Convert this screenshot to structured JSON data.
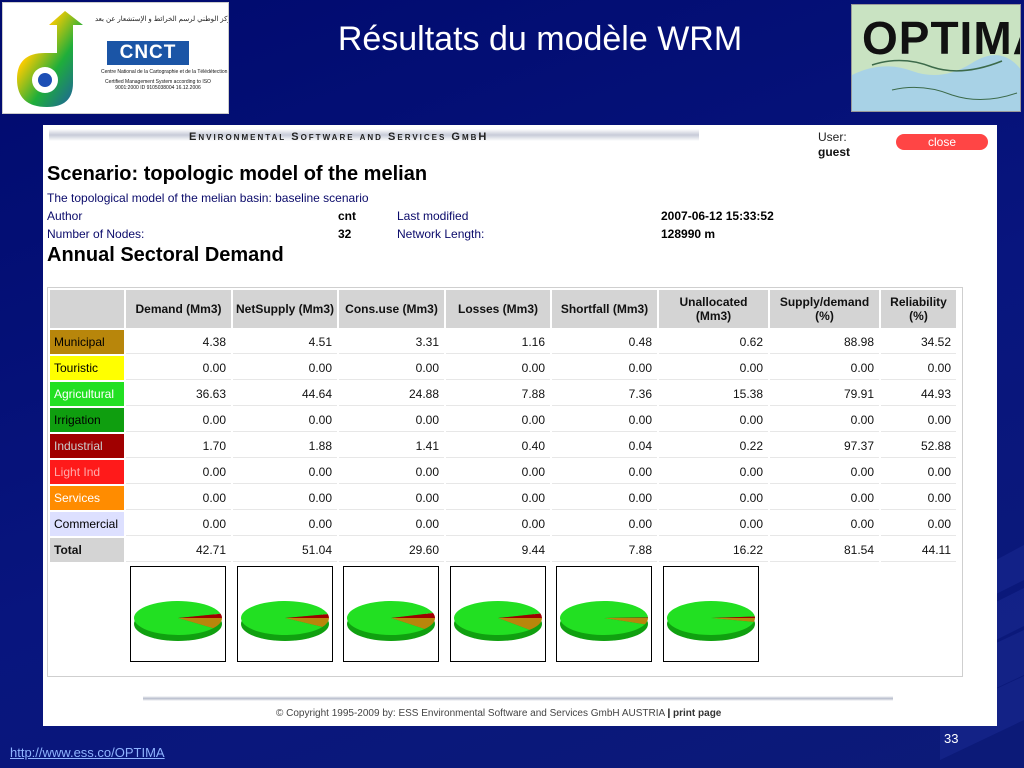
{
  "slide": {
    "title": "Résultats du modèle WRM",
    "page_number": "33",
    "url": "http://www.ess.co/OPTIMA"
  },
  "logos": {
    "cnct_word": "CNCT",
    "cnct_arabic": "المركز الوطني لرسم الخرائط و الإستشعار عن بعد",
    "cnct_fullname": "Centre National de la Cartographie et de la Télédétection",
    "cnct_cert": "Certified Management System according to ISO 9001:2000 ID 9105038004 16.12.2006",
    "optima_word": "OPTIMA"
  },
  "app": {
    "company": "Environmental Software and Services GmbH",
    "user_label": "User:",
    "user_name": "guest",
    "close_label": "close",
    "scenario_title": "Scenario: topologic model of the melian",
    "scenario_desc": "The topological model of the melian basin: baseline scenario",
    "author_label": "Author",
    "author": "cnt",
    "last_modified_label": "Last modified",
    "last_modified": "2007-06-12 15:33:52",
    "nodes_label": "Number of Nodes:",
    "nodes": "32",
    "network_length_label": "Network Length:",
    "network_length": "128990 m",
    "section_title": "Annual Sectoral Demand",
    "copyright": "© Copyright 1995-2009 by:   ESS   Environmental Software and Services GmbH AUSTRIA",
    "print_label": "print page"
  },
  "table": {
    "headers": [
      "Demand (Mm3)",
      "NetSupply (Mm3)",
      "Cons.use (Mm3)",
      "Losses (Mm3)",
      "Shortfall (Mm3)",
      "Unallocated (Mm3)",
      "Supply/demand (%)",
      "Reliability (%)"
    ],
    "rows": [
      {
        "name": "Municipal",
        "color": "#b8860b",
        "text_color": "#000000",
        "values": [
          "4.38",
          "4.51",
          "3.31",
          "1.16",
          "0.48",
          "0.62",
          "88.98",
          "34.52"
        ]
      },
      {
        "name": "Touristic",
        "color": "#ffff00",
        "text_color": "#000000",
        "values": [
          "0.00",
          "0.00",
          "0.00",
          "0.00",
          "0.00",
          "0.00",
          "0.00",
          "0.00"
        ]
      },
      {
        "name": "Agricultural",
        "color": "#22e022",
        "text_color": "#ffffff",
        "values": [
          "36.63",
          "44.64",
          "24.88",
          "7.88",
          "7.36",
          "15.38",
          "79.91",
          "44.93"
        ]
      },
      {
        "name": "Irrigation",
        "color": "#0f9e0f",
        "text_color": "#000000",
        "values": [
          "0.00",
          "0.00",
          "0.00",
          "0.00",
          "0.00",
          "0.00",
          "0.00",
          "0.00"
        ]
      },
      {
        "name": "Industrial",
        "color": "#a00000",
        "text_color": "#cccccc",
        "values": [
          "1.70",
          "1.88",
          "1.41",
          "0.40",
          "0.04",
          "0.22",
          "97.37",
          "52.88"
        ]
      },
      {
        "name": "Light Ind",
        "color": "#ff1a1a",
        "text_color": "#ffaaaa",
        "values": [
          "0.00",
          "0.00",
          "0.00",
          "0.00",
          "0.00",
          "0.00",
          "0.00",
          "0.00"
        ]
      },
      {
        "name": "Services",
        "color": "#ff8c00",
        "text_color": "#ffffff",
        "values": [
          "0.00",
          "0.00",
          "0.00",
          "0.00",
          "0.00",
          "0.00",
          "0.00",
          "0.00"
        ]
      },
      {
        "name": "Commercial",
        "color": "#dde0ff",
        "text_color": "#000000",
        "values": [
          "0.00",
          "0.00",
          "0.00",
          "0.00",
          "0.00",
          "0.00",
          "0.00",
          "0.00"
        ]
      }
    ],
    "total": {
      "name": "Total",
      "values": [
        "42.71",
        "51.04",
        "29.60",
        "9.44",
        "7.88",
        "16.22",
        "81.54",
        "44.11"
      ]
    }
  },
  "pie_columns": [
    0,
    1,
    2,
    3,
    4,
    5
  ]
}
